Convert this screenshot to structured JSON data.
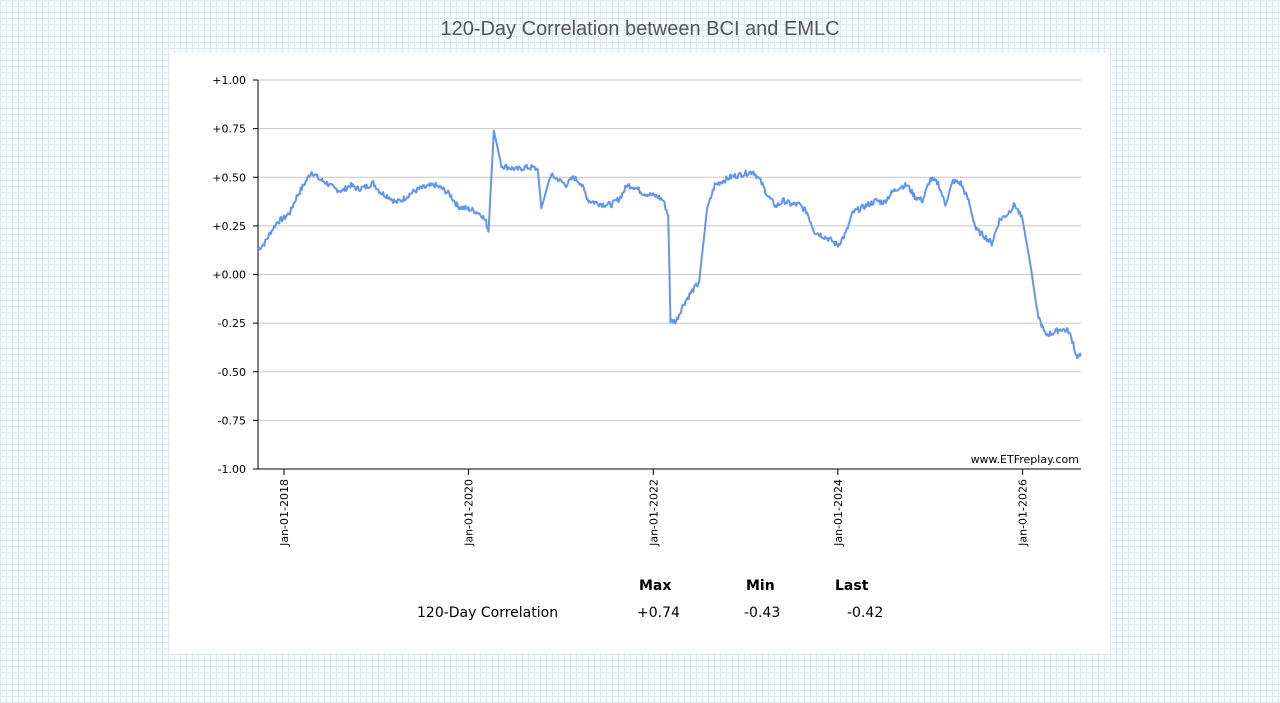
{
  "title": "120-Day Correlation between BCI and EMLC",
  "watermark": "www.ETFreplay.com",
  "colors": {
    "line": "#6495ed",
    "grid": "#c8c8c8",
    "axis": "#000000"
  },
  "stats": {
    "headers": {
      "max": "Max",
      "min": "Min",
      "last": "Last"
    },
    "row_label": "120-Day Correlation",
    "max": "+0.74",
    "min": "-0.43",
    "last": "-0.42"
  },
  "chart_data": {
    "type": "line",
    "title": "120-Day Correlation between BCI and EMLC",
    "xlabel": "",
    "ylabel": "",
    "ylim": [
      -1,
      1
    ],
    "xlim": [
      "2017-09-20",
      "2026-08-20"
    ],
    "grid": true,
    "y_ticks": [
      "+1.00",
      "+0.75",
      "+0.50",
      "+0.25",
      "+0.00",
      "-0.25",
      "-0.50",
      "-0.75",
      "-1.00"
    ],
    "x_ticks": [
      "Jan-01-2018",
      "Jan-01-2020",
      "Jan-01-2022",
      "Jan-01-2024",
      "Jan-01-2026"
    ],
    "series": [
      {
        "x": [
          "2017-09-20",
          "2017-10-15",
          "2017-11-10",
          "2017-12-05",
          "2018-01-01",
          "2018-01-25",
          "2018-02-20",
          "2018-03-20",
          "2018-04-20",
          "2018-05-20",
          "2018-06-20",
          "2018-07-20",
          "2018-08-20",
          "2018-09-20",
          "2018-10-20",
          "2018-11-20",
          "2018-12-20",
          "2019-01-20",
          "2019-02-20",
          "2019-03-20",
          "2019-04-20",
          "2019-05-20",
          "2019-06-20",
          "2019-07-20",
          "2019-08-20",
          "2019-09-20",
          "2019-10-20",
          "2019-11-20",
          "2019-12-20",
          "2020-01-20",
          "2020-02-20",
          "2020-03-10",
          "2020-03-20",
          "2020-04-10",
          "2020-05-10",
          "2020-06-10",
          "2020-07-10",
          "2020-08-10",
          "2020-09-10",
          "2020-10-01",
          "2020-10-15",
          "2020-11-20",
          "2020-12-20",
          "2021-01-20",
          "2021-02-20",
          "2021-03-20",
          "2021-04-20",
          "2021-05-20",
          "2021-06-20",
          "2021-07-20",
          "2021-08-20",
          "2021-09-20",
          "2021-10-20",
          "2021-11-20",
          "2021-12-20",
          "2022-01-20",
          "2022-02-10",
          "2022-03-01",
          "2022-03-10",
          "2022-04-01",
          "2022-05-01",
          "2022-06-01",
          "2022-07-01",
          "2022-08-01",
          "2022-09-01",
          "2022-10-01",
          "2022-11-01",
          "2022-12-01",
          "2023-01-01",
          "2023-02-01",
          "2023-03-01",
          "2023-04-01",
          "2023-05-01",
          "2023-06-01",
          "2023-07-01",
          "2023-08-01",
          "2023-09-01",
          "2023-10-01",
          "2023-11-01",
          "2023-12-01",
          "2024-01-01",
          "2024-02-01",
          "2024-03-01",
          "2024-04-01",
          "2024-05-01",
          "2024-06-01",
          "2024-07-01",
          "2024-08-01",
          "2024-09-01",
          "2024-10-01",
          "2024-11-01",
          "2024-12-01",
          "2025-01-01",
          "2025-02-01",
          "2025-03-01",
          "2025-04-01",
          "2025-05-01",
          "2025-06-01",
          "2025-07-01",
          "2025-08-01",
          "2025-09-01",
          "2025-10-01",
          "2025-11-01",
          "2025-12-01",
          "2026-01-01",
          "2026-02-01",
          "2026-03-01",
          "2026-03-20",
          "2026-04-01",
          "2026-05-01",
          "2026-06-01",
          "2026-07-01",
          "2026-07-20",
          "2026-08-01",
          "2026-08-20"
        ],
        "y": [
          0.13,
          0.16,
          0.22,
          0.27,
          0.29,
          0.32,
          0.4,
          0.46,
          0.53,
          0.49,
          0.47,
          0.44,
          0.43,
          0.46,
          0.44,
          0.45,
          0.47,
          0.42,
          0.4,
          0.37,
          0.39,
          0.42,
          0.44,
          0.45,
          0.46,
          0.44,
          0.41,
          0.35,
          0.34,
          0.33,
          0.31,
          0.27,
          0.22,
          0.74,
          0.56,
          0.55,
          0.54,
          0.55,
          0.55,
          0.54,
          0.34,
          0.51,
          0.49,
          0.46,
          0.5,
          0.47,
          0.38,
          0.37,
          0.36,
          0.36,
          0.39,
          0.46,
          0.45,
          0.42,
          0.41,
          0.4,
          0.38,
          0.3,
          -0.24,
          -0.24,
          -0.15,
          -0.09,
          -0.04,
          0.33,
          0.46,
          0.48,
          0.5,
          0.51,
          0.52,
          0.53,
          0.48,
          0.4,
          0.35,
          0.38,
          0.36,
          0.36,
          0.32,
          0.22,
          0.2,
          0.18,
          0.15,
          0.21,
          0.32,
          0.34,
          0.36,
          0.38,
          0.37,
          0.42,
          0.45,
          0.46,
          0.4,
          0.38,
          0.49,
          0.47,
          0.36,
          0.48,
          0.47,
          0.38,
          0.23,
          0.2,
          0.16,
          0.28,
          0.31,
          0.36,
          0.28,
          0.05,
          -0.2,
          -0.27,
          -0.31,
          -0.3,
          -0.28,
          -0.29,
          -0.35,
          -0.42,
          -0.42
        ]
      }
    ]
  }
}
